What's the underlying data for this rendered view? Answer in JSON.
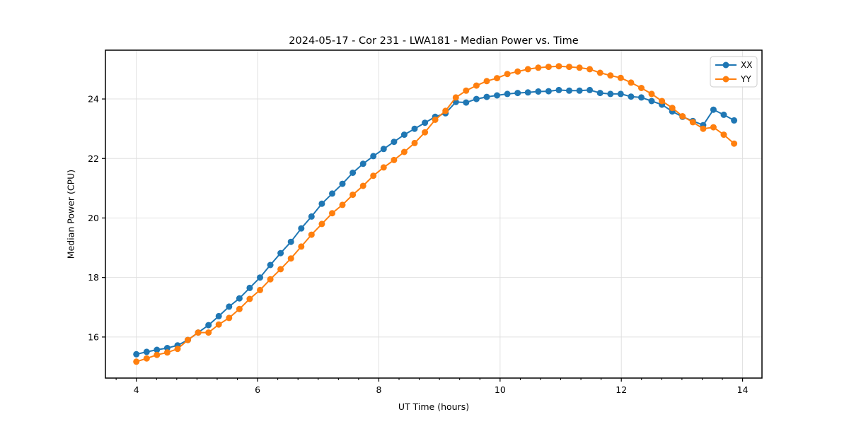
{
  "chart_data": {
    "type": "line",
    "title": "2024-05-17 - Cor 231 - LWA181 - Median Power vs. Time",
    "xlabel": "UT Time (hours)",
    "ylabel": "Median Power (CPU)",
    "xlim": [
      3.49,
      14.32
    ],
    "ylim": [
      14.62,
      25.64
    ],
    "x_ticks": [
      4,
      6,
      8,
      10,
      12,
      14
    ],
    "y_ticks": [
      16,
      18,
      20,
      22,
      24
    ],
    "x_minor_per_major": 3,
    "grid": true,
    "grid_color": "#e0e0e0",
    "axis_color": "#000000",
    "legend_position": "upper right",
    "marker": "circle",
    "x": [
      4.0,
      4.17,
      4.34,
      4.51,
      4.68,
      4.85,
      5.02,
      5.19,
      5.36,
      5.53,
      5.7,
      5.87,
      6.04,
      6.21,
      6.38,
      6.55,
      6.72,
      6.89,
      7.06,
      7.23,
      7.4,
      7.57,
      7.74,
      7.91,
      8.08,
      8.25,
      8.42,
      8.59,
      8.76,
      8.93,
      9.1,
      9.27,
      9.44,
      9.61,
      9.78,
      9.95,
      10.12,
      10.29,
      10.46,
      10.63,
      10.8,
      10.97,
      11.14,
      11.31,
      11.48,
      11.65,
      11.82,
      11.99,
      12.16,
      12.33,
      12.5,
      12.67,
      12.84,
      13.01,
      13.18,
      13.35,
      13.52,
      13.69,
      13.86
    ],
    "series": [
      {
        "name": "XX",
        "color": "#1f77b4",
        "values": [
          15.42,
          15.5,
          15.57,
          15.63,
          15.72,
          15.9,
          16.15,
          16.4,
          16.7,
          17.02,
          17.3,
          17.65,
          18.0,
          18.42,
          18.82,
          19.2,
          19.65,
          20.05,
          20.48,
          20.82,
          21.15,
          21.52,
          21.82,
          22.08,
          22.32,
          22.56,
          22.8,
          23.0,
          23.2,
          23.4,
          23.52,
          23.9,
          23.88,
          24.0,
          24.07,
          24.12,
          24.17,
          24.2,
          24.22,
          24.25,
          24.26,
          24.3,
          24.28,
          24.28,
          24.3,
          24.2,
          24.17,
          24.17,
          24.08,
          24.05,
          23.93,
          23.81,
          23.58,
          23.4,
          23.26,
          23.12,
          23.64,
          23.47,
          23.28
        ]
      },
      {
        "name": "YY",
        "color": "#ff7f0e",
        "values": [
          15.17,
          15.28,
          15.4,
          15.48,
          15.6,
          15.9,
          16.15,
          16.15,
          16.42,
          16.64,
          16.94,
          17.28,
          17.58,
          17.94,
          18.28,
          18.64,
          19.04,
          19.44,
          19.8,
          20.16,
          20.44,
          20.78,
          21.08,
          21.42,
          21.7,
          21.95,
          22.22,
          22.52,
          22.88,
          23.3,
          23.6,
          24.05,
          24.28,
          24.45,
          24.6,
          24.7,
          24.84,
          24.92,
          25.0,
          25.05,
          25.08,
          25.1,
          25.08,
          25.05,
          25.0,
          24.88,
          24.79,
          24.71,
          24.55,
          24.37,
          24.17,
          23.93,
          23.7,
          23.42,
          23.22,
          23.0,
          23.05,
          22.8,
          22.5
        ]
      }
    ]
  }
}
